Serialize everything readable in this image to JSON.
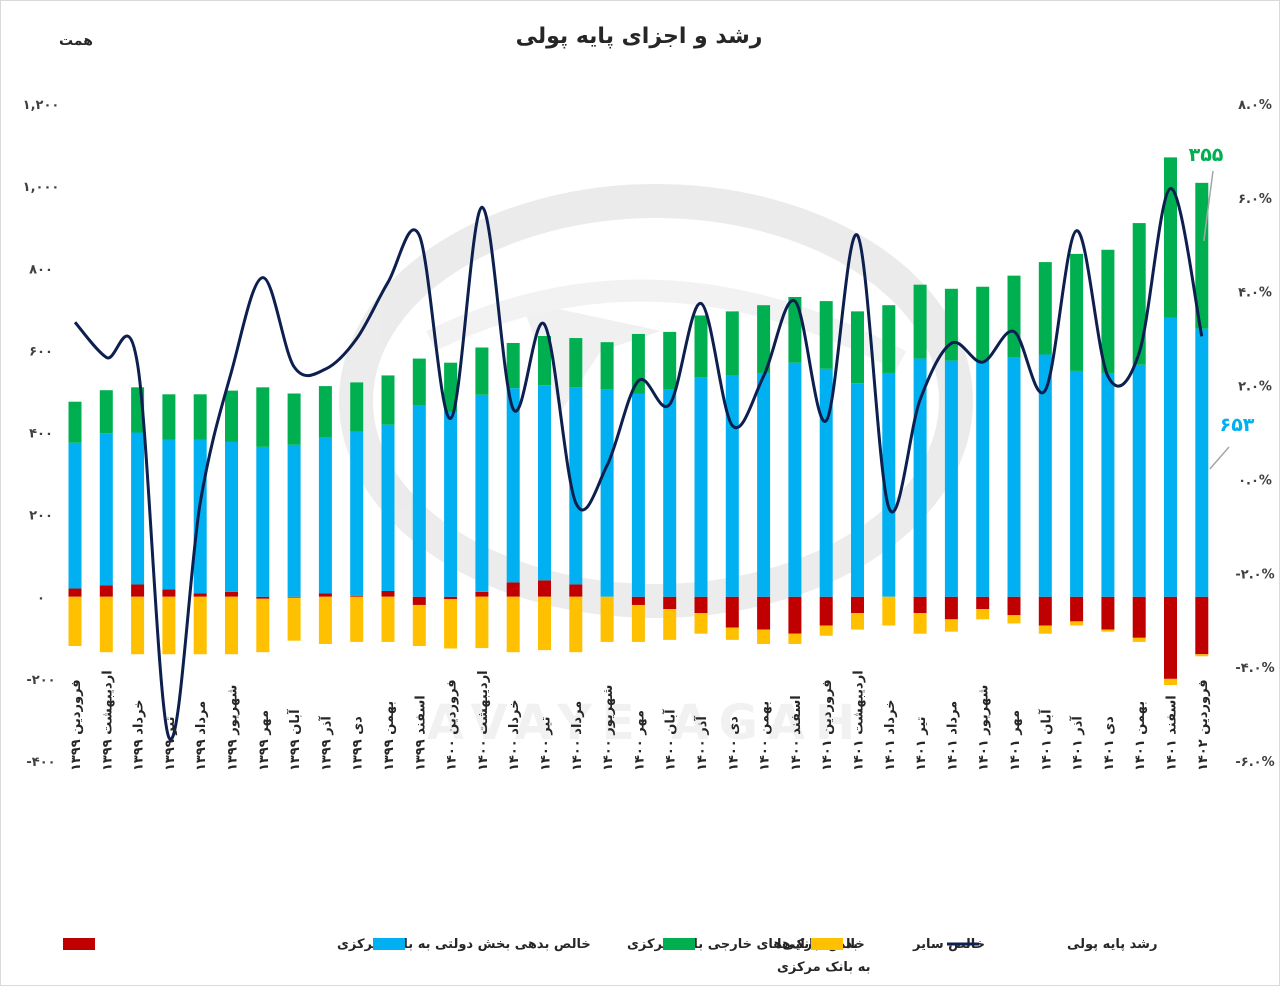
{
  "chart_data": {
    "type": "bar",
    "title": "رشد و اجزای پایه پولی",
    "ylabel": "همت",
    "ylim": [
      -400,
      1200
    ],
    "yticks": [
      -400,
      -200,
      0,
      200,
      400,
      600,
      800,
      1000,
      1200
    ],
    "ytick_labels": [
      "-۴۰۰",
      "-۲۰۰",
      "۰",
      "۲۰۰",
      "۴۰۰",
      "۶۰۰",
      "۸۰۰",
      "۱,۰۰۰",
      "۱,۲۰۰"
    ],
    "y2lim": [
      -6,
      8
    ],
    "y2ticks": [
      -6,
      -4,
      -2,
      0,
      2,
      4,
      6,
      8
    ],
    "y2tick_labels": [
      "-۶.۰%",
      "-۴.۰%",
      "-۲.۰%",
      "۰.۰%",
      "۲.۰%",
      "۴.۰%",
      "۶.۰%",
      "۸.۰%"
    ],
    "grid": false,
    "legend_position": "bottom",
    "categories": [
      "فروردین ۱۳۹۹",
      "اردیبهشت ۱۳۹۹",
      "خرداد ۱۳۹۹",
      "تیر ۱۳۹۹",
      "مرداد ۱۳۹۹",
      "شهریور ۱۳۹۹",
      "مهر ۱۳۹۹",
      "آبان ۱۳۹۹",
      "آذر ۱۳۹۹",
      "دی ۱۳۹۹",
      "بهمن ۱۳۹۹",
      "اسفند ۱۳۹۹",
      "فروردین ۱۴۰۰",
      "اردیبهشت ۱۴۰۰",
      "خرداد ۱۴۰۰",
      "تیر ۱۴۰۰",
      "مرداد ۱۴۰۰",
      "شهریور ۱۴۰۰",
      "مهر ۱۴۰۰",
      "آبان ۱۴۰۰",
      "آذر ۱۴۰۰",
      "دی ۱۴۰۰",
      "بهمن ۱۴۰۰",
      "اسفند ۱۴۰۰",
      "فروردین ۱۴۰۱",
      "اردیبهشت ۱۴۰۱",
      "خرداد ۱۴۰۱",
      "تیر ۱۴۰۱",
      "مرداد ۱۴۰۱",
      "شهریور ۱۴۰۱",
      "مهر ۱۴۰۱",
      "آبان ۱۴۰۱",
      "آذر ۱۴۰۱",
      "دی ۱۴۰۱",
      "بهمن ۱۴۰۱",
      "اسفند ۱۴۰۱",
      "فروردین ۱۴۰۲"
    ],
    "series": [
      {
        "name": "خالص بدهی بخش دولتی به بانک مرکزی",
        "color": "#c00000",
        "kind": "bar",
        "values": [
          20,
          28,
          30,
          18,
          8,
          12,
          -5,
          -2,
          8,
          2,
          14,
          -20,
          -6,
          12,
          35,
          40,
          30,
          0,
          -20,
          -30,
          -40,
          -75,
          -80,
          -90,
          -70,
          -40,
          0,
          -40,
          -55,
          -30,
          -45,
          -70,
          -60,
          -80,
          -100,
          -200,
          -140
        ]
      },
      {
        "name": "خالص دارایی‌های خارجی بانک مرکزی",
        "color": "#00b0f0",
        "kind": "bar",
        "values": [
          355,
          370,
          370,
          365,
          375,
          365,
          365,
          370,
          380,
          400,
          405,
          465,
          450,
          480,
          473,
          475,
          480,
          505,
          495,
          505,
          535,
          540,
          545,
          570,
          555,
          520,
          545,
          580,
          575,
          575,
          582,
          590,
          550,
          545,
          565,
          680,
          653
        ]
      },
      {
        "name": "بدهی بانک‌ها به بانک مرکزی",
        "color": "#00b050",
        "kind": "bar",
        "values": [
          100,
          105,
          110,
          110,
          110,
          125,
          145,
          125,
          125,
          120,
          120,
          115,
          120,
          115,
          110,
          120,
          120,
          115,
          145,
          140,
          150,
          155,
          165,
          160,
          165,
          175,
          165,
          180,
          175,
          180,
          200,
          225,
          285,
          300,
          345,
          390,
          355
        ]
      },
      {
        "name": "خالص سایر",
        "color": "#ffc000",
        "kind": "bar",
        "values": [
          -120,
          -135,
          -140,
          -140,
          -140,
          -140,
          -130,
          -105,
          -115,
          -110,
          -110,
          -100,
          -120,
          -125,
          -135,
          -130,
          -135,
          -110,
          -90,
          -75,
          -50,
          -30,
          -35,
          -25,
          -25,
          -40,
          -70,
          -50,
          -30,
          -25,
          -20,
          -20,
          -10,
          -5,
          -10,
          -15,
          -5
        ]
      },
      {
        "name": "رشد پایه پولی",
        "color": "#0d1f4f",
        "kind": "line",
        "values": [
          3.35,
          2.6,
          2.45,
          -5.5,
          -0.5,
          2.3,
          4.3,
          2.4,
          2.35,
          3.0,
          4.2,
          5.2,
          1.3,
          5.8,
          1.5,
          3.3,
          -0.5,
          0.3,
          2.1,
          1.6,
          3.75,
          1.15,
          2.2,
          3.8,
          1.25,
          5.2,
          -0.6,
          1.7,
          2.9,
          2.5,
          3.15,
          1.9,
          5.3,
          2.2,
          2.7,
          6.2,
          3.05
        ]
      }
    ],
    "annotations": [
      {
        "text": "۶۵۳",
        "color": "#00b0f0",
        "category": "فروردین ۱۴۰۲"
      },
      {
        "text": "۳۵۵",
        "color": "#00b050",
        "category": "فروردین ۱۴۰۲"
      }
    ],
    "watermark": "AVAYE AGAH"
  }
}
